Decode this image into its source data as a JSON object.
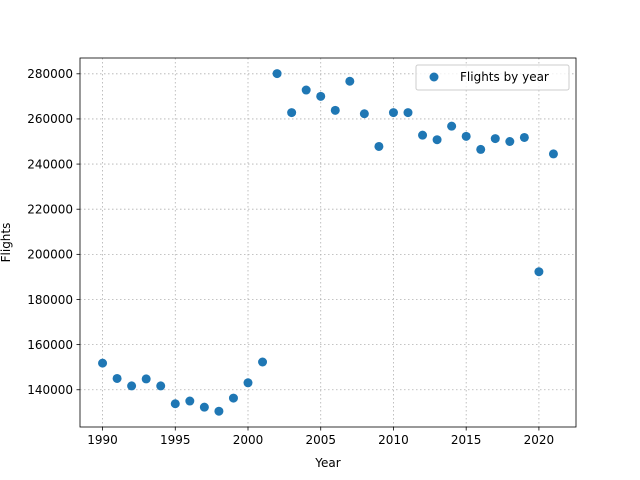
{
  "chart_data": {
    "type": "scatter",
    "title": "",
    "xlabel": "Year",
    "ylabel": "Flights",
    "xlim": [
      1988.45,
      2022.55
    ],
    "ylim": [
      123500,
      287000
    ],
    "xticks": [
      1990,
      1995,
      2000,
      2005,
      2010,
      2015,
      2020
    ],
    "yticks": [
      140000,
      160000,
      180000,
      200000,
      220000,
      240000,
      260000,
      280000
    ],
    "grid": true,
    "legend_position": "top-right",
    "series": [
      {
        "name": "Flights by year",
        "color": "#1f77b4",
        "x": [
          1990,
          1991,
          1992,
          1993,
          1994,
          1995,
          1996,
          1997,
          1998,
          1999,
          2000,
          2001,
          2002,
          2003,
          2004,
          2005,
          2006,
          2007,
          2008,
          2009,
          2010,
          2011,
          2012,
          2013,
          2014,
          2015,
          2016,
          2017,
          2018,
          2019,
          2020,
          2021
        ],
        "y": [
          151800,
          145000,
          141700,
          144800,
          141700,
          133800,
          135000,
          132300,
          130500,
          136300,
          143100,
          152300,
          280100,
          262800,
          272800,
          270000,
          263800,
          276700,
          262300,
          247800,
          262800,
          262800,
          252800,
          250800,
          256800,
          252300,
          246500,
          251300,
          250000,
          251800,
          192300,
          244500
        ]
      }
    ]
  }
}
